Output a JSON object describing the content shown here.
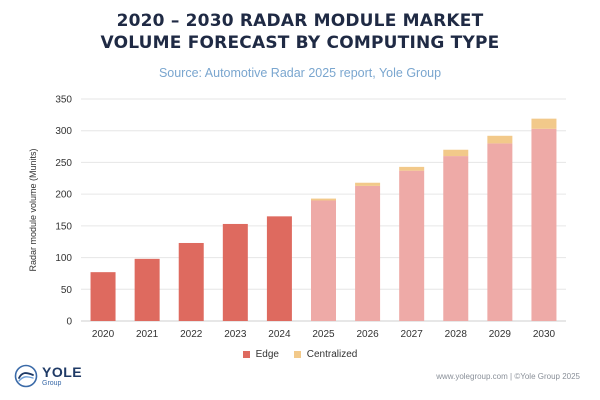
{
  "title_line1": "2020 – 2030 RADAR MODULE MARKET",
  "title_line2": "VOLUME FORECAST BY COMPUTING TYPE",
  "subtitle": "Source: Automotive Radar 2025 report, Yole Group",
  "legend": {
    "edge": "Edge",
    "centralized": "Centralized"
  },
  "logo": {
    "name": "YOLE",
    "sub": "Group"
  },
  "footer": {
    "url": "www.yolegroup.com",
    "separator": "|",
    "copyright": "©Yole Group 2025"
  },
  "colors": {
    "edge_actual": "#de6a5f",
    "edge_forecast": "#eeaaa7",
    "centralized": "#f2c98a",
    "axis_text": "#333333",
    "grid": "#e6e6e6",
    "title": "#1f2a44",
    "subtitle": "#7aa6cf"
  },
  "chart_data": {
    "type": "bar",
    "stacked": true,
    "categories": [
      "2020",
      "2021",
      "2022",
      "2023",
      "2024",
      "2025",
      "2026",
      "2027",
      "2028",
      "2029",
      "2030"
    ],
    "series": [
      {
        "name": "Edge",
        "values": [
          77,
          98,
          123,
          153,
          165,
          190,
          213,
          237,
          260,
          280,
          303
        ]
      },
      {
        "name": "Centralized",
        "values": [
          0,
          0,
          0,
          0,
          0,
          3,
          5,
          6,
          10,
          12,
          16
        ]
      }
    ],
    "forecast_from": "2025",
    "ylabel": "Radar module volume (Munits)",
    "xlabel": "",
    "ylim": [
      0,
      350
    ],
    "yticks": [
      0,
      50,
      100,
      150,
      200,
      250,
      300,
      350
    ],
    "grid": true,
    "legend_position": "bottom"
  }
}
